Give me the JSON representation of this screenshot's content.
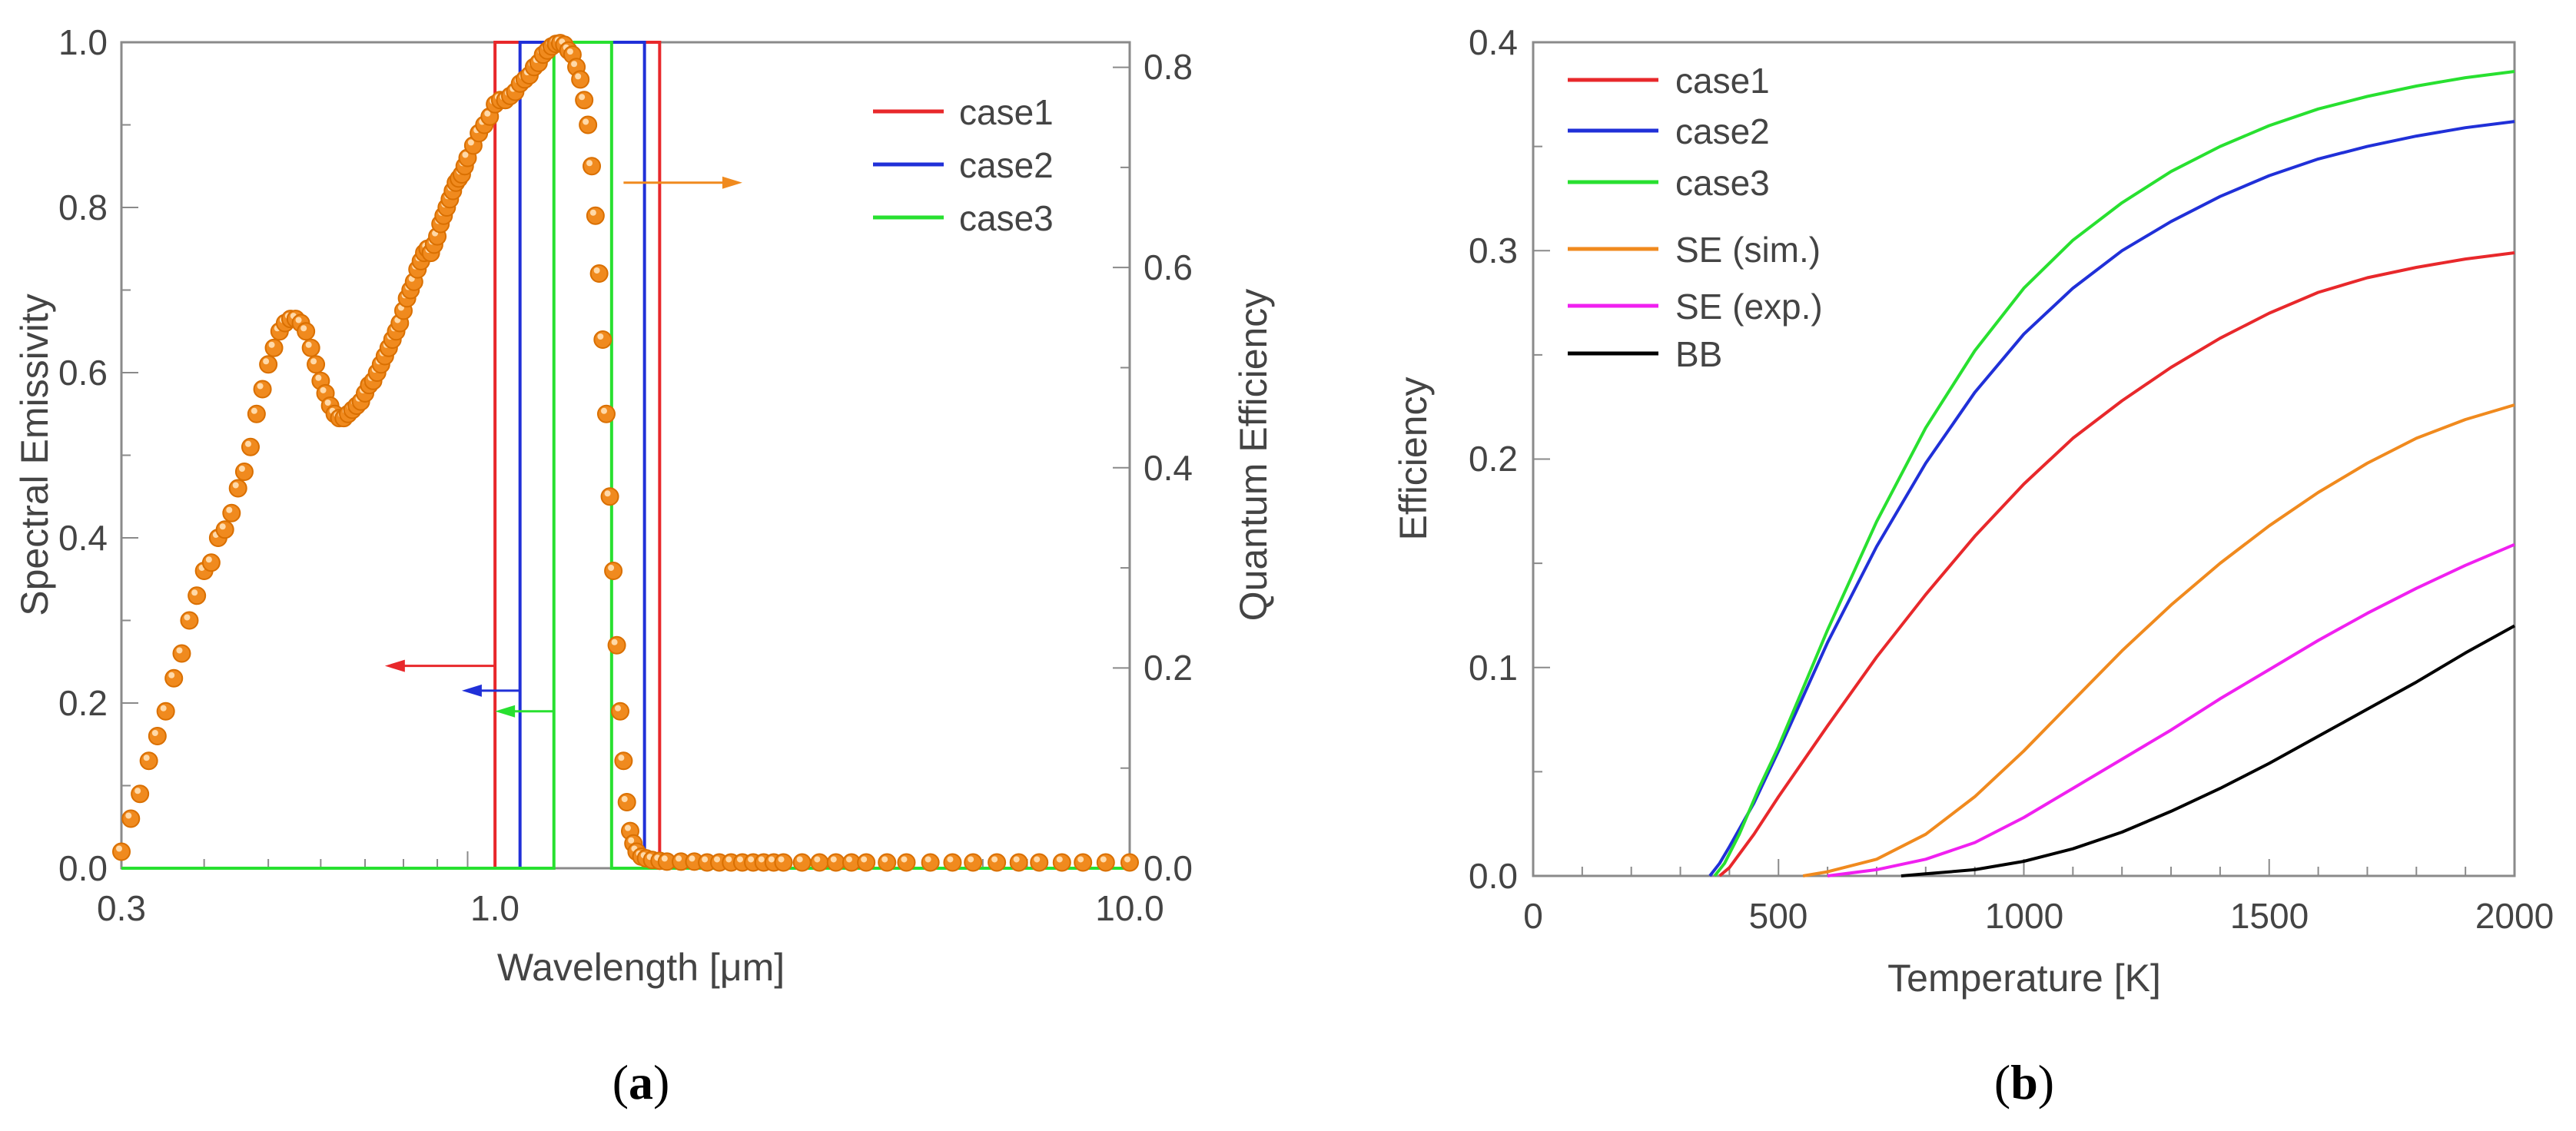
{
  "chart_data": [
    {
      "panel_label": "a",
      "panel_prefix": "(",
      "panel_suffix": ")",
      "type": "scatter",
      "xscale": "log",
      "xlabel": "Wavelength [μm]",
      "ylabel": "Spectral Emissivity",
      "y2label": "Quantum Efficiency",
      "xlim": [
        0.3,
        10.0
      ],
      "ylim": [
        0,
        1.0
      ],
      "y2lim": [
        0,
        0.825
      ],
      "x_ticks": [
        "0.3",
        "1.0",
        "10.0"
      ],
      "y_ticks": [
        "0.0",
        "0.2",
        "0.4",
        "0.6",
        "0.8",
        "1.0"
      ],
      "y2_ticks": [
        "0.0",
        "0.2",
        "0.4",
        "0.6",
        "0.8"
      ],
      "legend_position": "top-right",
      "emissivity_marker_color": "#F08A1E",
      "emissivity_points": [
        [
          0.3,
          0.02
        ],
        [
          0.31,
          0.06
        ],
        [
          0.32,
          0.09
        ],
        [
          0.33,
          0.13
        ],
        [
          0.34,
          0.16
        ],
        [
          0.35,
          0.19
        ],
        [
          0.36,
          0.23
        ],
        [
          0.37,
          0.26
        ],
        [
          0.38,
          0.3
        ],
        [
          0.39,
          0.33
        ],
        [
          0.4,
          0.36
        ],
        [
          0.41,
          0.37
        ],
        [
          0.42,
          0.4
        ],
        [
          0.43,
          0.41
        ],
        [
          0.44,
          0.43
        ],
        [
          0.45,
          0.46
        ],
        [
          0.46,
          0.48
        ],
        [
          0.47,
          0.51
        ],
        [
          0.48,
          0.55
        ],
        [
          0.49,
          0.58
        ],
        [
          0.5,
          0.61
        ],
        [
          0.51,
          0.63
        ],
        [
          0.52,
          0.65
        ],
        [
          0.53,
          0.66
        ],
        [
          0.54,
          0.665
        ],
        [
          0.55,
          0.665
        ],
        [
          0.56,
          0.66
        ],
        [
          0.57,
          0.65
        ],
        [
          0.58,
          0.63
        ],
        [
          0.59,
          0.61
        ],
        [
          0.6,
          0.59
        ],
        [
          0.61,
          0.575
        ],
        [
          0.62,
          0.56
        ],
        [
          0.63,
          0.55
        ],
        [
          0.64,
          0.545
        ],
        [
          0.65,
          0.545
        ],
        [
          0.66,
          0.55
        ],
        [
          0.67,
          0.555
        ],
        [
          0.68,
          0.56
        ],
        [
          0.69,
          0.565
        ],
        [
          0.7,
          0.575
        ],
        [
          0.71,
          0.585
        ],
        [
          0.72,
          0.59
        ],
        [
          0.73,
          0.6
        ],
        [
          0.74,
          0.61
        ],
        [
          0.75,
          0.62
        ],
        [
          0.76,
          0.63
        ],
        [
          0.77,
          0.64
        ],
        [
          0.78,
          0.65
        ],
        [
          0.79,
          0.66
        ],
        [
          0.8,
          0.675
        ],
        [
          0.81,
          0.69
        ],
        [
          0.82,
          0.7
        ],
        [
          0.83,
          0.71
        ],
        [
          0.84,
          0.725
        ],
        [
          0.85,
          0.735
        ],
        [
          0.86,
          0.745
        ],
        [
          0.87,
          0.75
        ],
        [
          0.88,
          0.745
        ],
        [
          0.89,
          0.755
        ],
        [
          0.9,
          0.765
        ],
        [
          0.91,
          0.78
        ],
        [
          0.92,
          0.79
        ],
        [
          0.93,
          0.8
        ],
        [
          0.94,
          0.81
        ],
        [
          0.95,
          0.82
        ],
        [
          0.96,
          0.83
        ],
        [
          0.97,
          0.835
        ],
        [
          0.98,
          0.84
        ],
        [
          0.99,
          0.85
        ],
        [
          1.0,
          0.86
        ],
        [
          1.02,
          0.875
        ],
        [
          1.04,
          0.89
        ],
        [
          1.06,
          0.9
        ],
        [
          1.08,
          0.91
        ],
        [
          1.1,
          0.925
        ],
        [
          1.12,
          0.93
        ],
        [
          1.14,
          0.93
        ],
        [
          1.16,
          0.935
        ],
        [
          1.18,
          0.94
        ],
        [
          1.2,
          0.95
        ],
        [
          1.22,
          0.955
        ],
        [
          1.24,
          0.96
        ],
        [
          1.26,
          0.97
        ],
        [
          1.28,
          0.975
        ],
        [
          1.3,
          0.985
        ],
        [
          1.32,
          0.99
        ],
        [
          1.34,
          0.995
        ],
        [
          1.36,
          0.998
        ],
        [
          1.38,
          0.999
        ],
        [
          1.4,
          0.997
        ],
        [
          1.42,
          0.99
        ],
        [
          1.44,
          0.985
        ],
        [
          1.46,
          0.97
        ],
        [
          1.48,
          0.955
        ],
        [
          1.5,
          0.93
        ],
        [
          1.52,
          0.9
        ],
        [
          1.54,
          0.85
        ],
        [
          1.56,
          0.79
        ],
        [
          1.58,
          0.72
        ],
        [
          1.6,
          0.64
        ],
        [
          1.62,
          0.55
        ],
        [
          1.64,
          0.45
        ],
        [
          1.66,
          0.36
        ],
        [
          1.68,
          0.27
        ],
        [
          1.7,
          0.19
        ],
        [
          1.72,
          0.13
        ],
        [
          1.74,
          0.08
        ],
        [
          1.76,
          0.045
        ],
        [
          1.78,
          0.03
        ],
        [
          1.8,
          0.02
        ],
        [
          1.83,
          0.014
        ],
        [
          1.86,
          0.012
        ],
        [
          1.9,
          0.01
        ],
        [
          1.95,
          0.009
        ],
        [
          2.0,
          0.008
        ],
        [
          2.1,
          0.008
        ],
        [
          2.2,
          0.008
        ],
        [
          2.3,
          0.007
        ],
        [
          2.4,
          0.007
        ],
        [
          2.5,
          0.007
        ],
        [
          2.6,
          0.007
        ],
        [
          2.7,
          0.007
        ],
        [
          2.8,
          0.007
        ],
        [
          2.9,
          0.007
        ],
        [
          3.0,
          0.007
        ],
        [
          3.2,
          0.007
        ],
        [
          3.4,
          0.007
        ],
        [
          3.6,
          0.007
        ],
        [
          3.8,
          0.007
        ],
        [
          4.0,
          0.007
        ],
        [
          4.3,
          0.007
        ],
        [
          4.6,
          0.007
        ],
        [
          5.0,
          0.007
        ],
        [
          5.4,
          0.007
        ],
        [
          5.8,
          0.007
        ],
        [
          6.3,
          0.007
        ],
        [
          6.8,
          0.007
        ],
        [
          7.3,
          0.007
        ],
        [
          7.9,
          0.007
        ],
        [
          8.5,
          0.007
        ],
        [
          9.2,
          0.007
        ],
        [
          10.0,
          0.007
        ]
      ],
      "series": [
        {
          "name": "case1",
          "color": "#E8282B",
          "band_um": [
            1.1,
            1.95
          ],
          "qe": 0.825
        },
        {
          "name": "case2",
          "color": "#2030D8",
          "band_um": [
            1.2,
            1.85
          ],
          "qe": 0.825
        },
        {
          "name": "case3",
          "color": "#28E030",
          "band_um": [
            1.35,
            1.65
          ],
          "qe": 0.825
        }
      ],
      "arrows": [
        {
          "color": "#E8282B",
          "direction": "left",
          "from_x": 1.1,
          "to_x": 0.75,
          "y": 0.245
        },
        {
          "color": "#2030D8",
          "direction": "left",
          "from_x": 1.2,
          "to_x": 0.98,
          "y": 0.215
        },
        {
          "color": "#28E030",
          "direction": "left",
          "from_x": 1.35,
          "to_x": 1.1,
          "y": 0.19
        },
        {
          "color": "#F08A1E",
          "direction": "right",
          "from_x": 1.72,
          "to_x": 2.6,
          "y": 0.83
        }
      ]
    },
    {
      "panel_label": "b",
      "panel_prefix": "(",
      "panel_suffix": ")",
      "type": "line",
      "xlabel": "Temperature [K]",
      "ylabel": "Efficiency",
      "xlim": [
        0,
        2000
      ],
      "ylim": [
        0,
        0.4
      ],
      "x_ticks": [
        "0",
        "500",
        "1000",
        "1500",
        "2000"
      ],
      "y_ticks": [
        "0.0",
        "0.1",
        "0.2",
        "0.3",
        "0.4"
      ],
      "legend_position": "top-left",
      "series": [
        {
          "name": "case1",
          "color": "#E8282B",
          "points": [
            [
              380,
              0.0
            ],
            [
              400,
              0.004
            ],
            [
              450,
              0.02
            ],
            [
              500,
              0.038
            ],
            [
              600,
              0.072
            ],
            [
              700,
              0.105
            ],
            [
              800,
              0.135
            ],
            [
              900,
              0.163
            ],
            [
              1000,
              0.188
            ],
            [
              1100,
              0.21
            ],
            [
              1200,
              0.228
            ],
            [
              1300,
              0.244
            ],
            [
              1400,
              0.258
            ],
            [
              1500,
              0.27
            ],
            [
              1600,
              0.28
            ],
            [
              1700,
              0.287
            ],
            [
              1800,
              0.292
            ],
            [
              1900,
              0.296
            ],
            [
              2000,
              0.299
            ]
          ]
        },
        {
          "name": "case2",
          "color": "#2030D8",
          "points": [
            [
              360,
              0.0
            ],
            [
              380,
              0.006
            ],
            [
              400,
              0.014
            ],
            [
              450,
              0.035
            ],
            [
              500,
              0.06
            ],
            [
              600,
              0.112
            ],
            [
              700,
              0.158
            ],
            [
              800,
              0.198
            ],
            [
              900,
              0.232
            ],
            [
              1000,
              0.26
            ],
            [
              1100,
              0.282
            ],
            [
              1200,
              0.3
            ],
            [
              1300,
              0.314
            ],
            [
              1400,
              0.326
            ],
            [
              1500,
              0.336
            ],
            [
              1600,
              0.344
            ],
            [
              1700,
              0.35
            ],
            [
              1800,
              0.355
            ],
            [
              1900,
              0.359
            ],
            [
              2000,
              0.362
            ]
          ]
        },
        {
          "name": "case3",
          "color": "#28E030",
          "points": [
            [
              370,
              0.0
            ],
            [
              390,
              0.006
            ],
            [
              420,
              0.02
            ],
            [
              460,
              0.042
            ],
            [
              500,
              0.062
            ],
            [
              600,
              0.118
            ],
            [
              700,
              0.17
            ],
            [
              800,
              0.215
            ],
            [
              900,
              0.252
            ],
            [
              1000,
              0.282
            ],
            [
              1100,
              0.305
            ],
            [
              1200,
              0.323
            ],
            [
              1300,
              0.338
            ],
            [
              1400,
              0.35
            ],
            [
              1500,
              0.36
            ],
            [
              1600,
              0.368
            ],
            [
              1700,
              0.374
            ],
            [
              1800,
              0.379
            ],
            [
              1900,
              0.383
            ],
            [
              2000,
              0.386
            ]
          ]
        },
        {
          "name": "SE (sim.)",
          "color": "#F08A1E",
          "points": [
            [
              550,
              0.0
            ],
            [
              600,
              0.002
            ],
            [
              700,
              0.008
            ],
            [
              800,
              0.02
            ],
            [
              900,
              0.038
            ],
            [
              1000,
              0.06
            ],
            [
              1100,
              0.084
            ],
            [
              1200,
              0.108
            ],
            [
              1300,
              0.13
            ],
            [
              1400,
              0.15
            ],
            [
              1500,
              0.168
            ],
            [
              1600,
              0.184
            ],
            [
              1700,
              0.198
            ],
            [
              1800,
              0.21
            ],
            [
              1900,
              0.219
            ],
            [
              2000,
              0.226
            ]
          ]
        },
        {
          "name": "SE (exp.)",
          "color": "#F020F0",
          "points": [
            [
              600,
              0.0
            ],
            [
              700,
              0.003
            ],
            [
              800,
              0.008
            ],
            [
              900,
              0.016
            ],
            [
              1000,
              0.028
            ],
            [
              1100,
              0.042
            ],
            [
              1200,
              0.056
            ],
            [
              1300,
              0.07
            ],
            [
              1400,
              0.085
            ],
            [
              1500,
              0.099
            ],
            [
              1600,
              0.113
            ],
            [
              1700,
              0.126
            ],
            [
              1800,
              0.138
            ],
            [
              1900,
              0.149
            ],
            [
              2000,
              0.159
            ]
          ]
        },
        {
          "name": "BB",
          "color": "#000000",
          "points": [
            [
              750,
              0.0
            ],
            [
              800,
              0.001
            ],
            [
              900,
              0.003
            ],
            [
              1000,
              0.007
            ],
            [
              1100,
              0.013
            ],
            [
              1200,
              0.021
            ],
            [
              1300,
              0.031
            ],
            [
              1400,
              0.042
            ],
            [
              1500,
              0.054
            ],
            [
              1600,
              0.067
            ],
            [
              1700,
              0.08
            ],
            [
              1800,
              0.093
            ],
            [
              1900,
              0.107
            ],
            [
              2000,
              0.12
            ]
          ]
        }
      ]
    }
  ]
}
